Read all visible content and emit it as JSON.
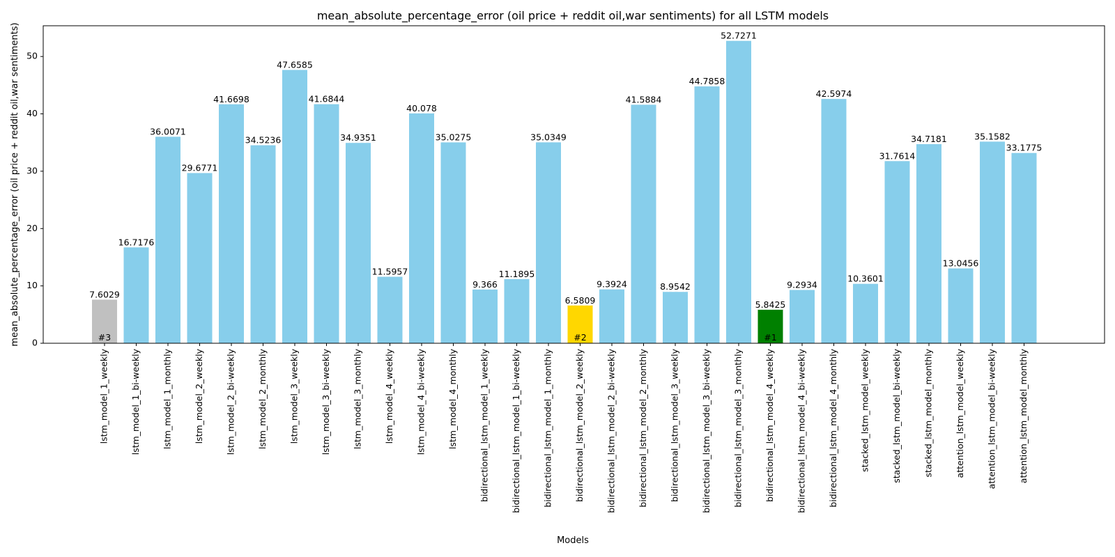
{
  "chart_data": {
    "type": "bar",
    "title": "mean_absolute_percentage_error (oil price + reddit oil,war  sentiments) for all LSTM models",
    "xlabel": "Models",
    "ylabel": "mean_absolute_percentage_error (oil price + reddit oil,war  sentiments)",
    "ylim": [
      0,
      55.36
    ],
    "yticks": [
      0,
      10,
      20,
      30,
      40,
      50
    ],
    "grid": false,
    "categories": [
      "lstm_model_1_weekly",
      "lstm_model_1_bi-weekly",
      "lstm_model_1_monthly",
      "lstm_model_2_weekly",
      "lstm_model_2_bi-weekly",
      "lstm_model_2_monthly",
      "lstm_model_3_weekly",
      "lstm_model_3_bi-weekly",
      "lstm_model_3_monthly",
      "lstm_model_4_weekly",
      "lstm_model_4_bi-weekly",
      "lstm_model_4_monthly",
      "bidirectional_lstm_model_1_weekly",
      "bidirectional_lstm_model_1_bi-weekly",
      "bidirectional_lstm_model_1_monthly",
      "bidirectional_lstm_model_2_weekly",
      "bidirectional_lstm_model_2_bi-weekly",
      "bidirectional_lstm_model_2_monthly",
      "bidirectional_lstm_model_3_weekly",
      "bidirectional_lstm_model_3_bi-weekly",
      "bidirectional_lstm_model_3_monthly",
      "bidirectional_lstm_model_4_weekly",
      "bidirectional_lstm_model_4_bi-weekly",
      "bidirectional_lstm_model_4_monthly",
      "stacked_lstm_model_weekly",
      "stacked_lstm_model_bi-weekly",
      "stacked_lstm_model_monthly",
      "attention_lstm_model_weekly",
      "attention_lstm_model_bi-weekly",
      "attention_lstm_model_monthly"
    ],
    "values": [
      7.6029,
      16.7176,
      36.0071,
      29.6771,
      41.6698,
      34.5236,
      47.6585,
      41.6844,
      34.9351,
      11.5957,
      40.078,
      35.0275,
      9.366,
      11.1895,
      35.0349,
      6.5809,
      9.3924,
      41.5884,
      8.9542,
      44.7858,
      52.7271,
      5.8425,
      9.2934,
      42.5974,
      10.3601,
      31.7614,
      34.7181,
      13.0456,
      35.1582,
      33.1775
    ],
    "value_labels": [
      "7.6029",
      "16.7176",
      "36.0071",
      "29.6771",
      "41.6698",
      "34.5236",
      "47.6585",
      "41.6844",
      "34.9351",
      "11.5957",
      "40.078",
      "35.0275",
      "9.366",
      "11.1895",
      "35.0349",
      "6.5809",
      "9.3924",
      "41.5884",
      "8.9542",
      "44.7858",
      "52.7271",
      "5.8425",
      "9.2934",
      "42.5974",
      "10.3601",
      "31.7614",
      "34.7181",
      "13.0456",
      "35.1582",
      "33.1775"
    ],
    "default_color": "#87ceeb",
    "highlights": [
      {
        "index": 21,
        "rank": "#1",
        "color": "#008000"
      },
      {
        "index": 15,
        "rank": "#2",
        "color": "#ffd700"
      },
      {
        "index": 0,
        "rank": "#3",
        "color": "#c0c0c0"
      }
    ]
  }
}
